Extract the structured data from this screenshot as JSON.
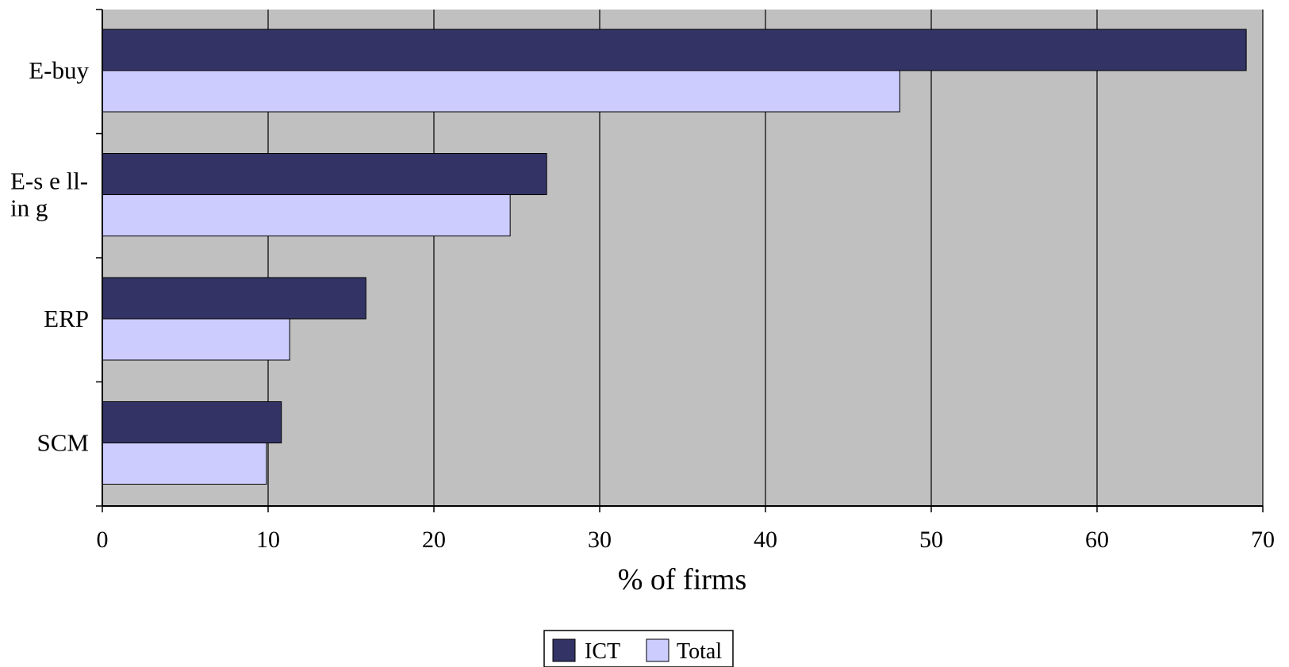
{
  "chart_data": {
    "type": "bar",
    "orientation": "horizontal",
    "categories": [
      "E-buy",
      "E-selling",
      "ERP",
      "SCM"
    ],
    "category_labels": [
      [
        "E-buy"
      ],
      [
        "E-s e ll-",
        "in g"
      ],
      [
        "ERP"
      ],
      [
        "SCM"
      ]
    ],
    "series": [
      {
        "name": "ICT",
        "values": [
          69,
          26.8,
          15.9,
          10.8
        ],
        "color": "#333366"
      },
      {
        "name": "Total",
        "values": [
          48.1,
          24.6,
          11.3,
          9.9
        ],
        "color": "#ccccff"
      }
    ],
    "xlim": [
      0,
      70
    ],
    "xticks": [
      "0",
      "10",
      "20",
      "30",
      "40",
      "50",
      "60",
      "70"
    ],
    "xlabel": "% of firms",
    "grid": "vertical",
    "plot_background": "#c0c0c0",
    "legend": {
      "position": "bottom",
      "entries": [
        "ICT",
        "Total"
      ]
    }
  }
}
